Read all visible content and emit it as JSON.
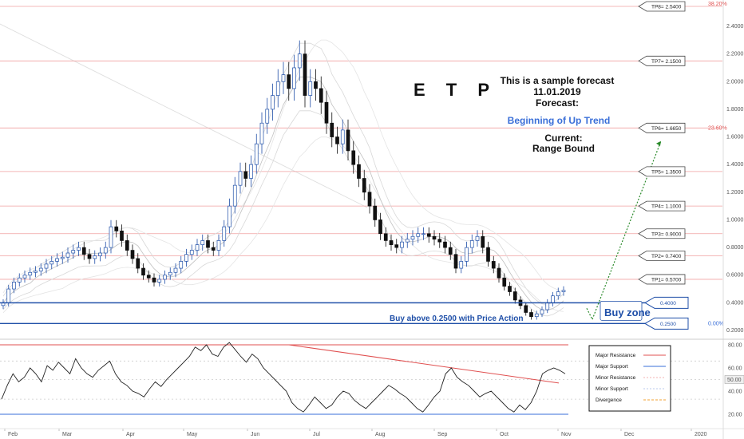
{
  "chart_data": {
    "type": "candlestick",
    "ticker": "E T P",
    "forecast": {
      "line1": "This is a sample forecast",
      "line2": "11.01.2019",
      "line3": "Forecast:",
      "trend": "Beginning of Up Trend",
      "current_label": "Current:",
      "current_value": "Range Bound"
    },
    "price_axis": {
      "ylim": [
        0.1,
        2.6
      ],
      "ticks": [
        "2.4000",
        "2.2000",
        "2.0000",
        "1.8000",
        "1.6000",
        "1.4000",
        "1.2000",
        "1.0000",
        "0.8000",
        "0.6000",
        "0.4000",
        "0.2000"
      ],
      "tick_values": [
        2.4,
        2.2,
        2.0,
        1.8,
        1.6,
        1.4,
        1.2,
        1.0,
        0.8,
        0.6,
        0.4,
        0.2
      ]
    },
    "targets": [
      {
        "label": "TP8= 2.5400",
        "value": 2.54
      },
      {
        "label": "TP7= 2.1500",
        "value": 2.15
      },
      {
        "label": "TP6= 1.6650",
        "value": 1.665
      },
      {
        "label": "TP5= 1.3500",
        "value": 1.35
      },
      {
        "label": "TP4= 1.1000",
        "value": 1.1
      },
      {
        "label": "TP3= 0.9000",
        "value": 0.9
      },
      {
        "label": "TP2= 0.7400",
        "value": 0.74
      },
      {
        "label": "TP1= 0.5700",
        "value": 0.57
      }
    ],
    "fib_levels": [
      {
        "label": "38.20%",
        "value": 2.58,
        "color": "#e05050"
      },
      {
        "label": "23.60%",
        "value": 1.665,
        "color": "#e05050"
      },
      {
        "label": "0.00%",
        "value": 0.25,
        "color": "#3a6fd8"
      }
    ],
    "buy_zone": {
      "label": "Buy zone",
      "upper": 0.4,
      "lower": 0.25,
      "upper_label": "0.4000",
      "lower_label": "0.2500",
      "note": "Buy above 0.2500 with Price Action"
    },
    "months": [
      "Feb",
      "Mar",
      "Apr",
      "May",
      "Jun",
      "Jul",
      "Aug",
      "Sep",
      "Oct",
      "Nov",
      "Dec",
      "2020"
    ],
    "price_path": [
      0.4,
      0.5,
      0.55,
      0.58,
      0.6,
      0.62,
      0.63,
      0.65,
      0.68,
      0.7,
      0.72,
      0.73,
      0.76,
      0.78,
      0.8,
      0.75,
      0.72,
      0.74,
      0.76,
      0.8,
      0.95,
      0.92,
      0.85,
      0.78,
      0.72,
      0.65,
      0.6,
      0.58,
      0.55,
      0.57,
      0.6,
      0.62,
      0.65,
      0.7,
      0.75,
      0.78,
      0.82,
      0.85,
      0.8,
      0.78,
      0.85,
      0.95,
      1.1,
      1.25,
      1.35,
      1.3,
      1.4,
      1.55,
      1.7,
      1.8,
      1.9,
      2.0,
      2.05,
      1.95,
      2.1,
      2.2,
      1.9,
      2.0,
      1.95,
      1.85,
      1.7,
      1.6,
      1.55,
      1.65,
      1.5,
      1.4,
      1.3,
      1.2,
      1.1,
      1.0,
      0.9,
      0.85,
      0.82,
      0.8,
      0.84,
      0.86,
      0.88,
      0.9,
      0.9,
      0.88,
      0.86,
      0.84,
      0.8,
      0.75,
      0.65,
      0.7,
      0.8,
      0.85,
      0.88,
      0.8,
      0.7,
      0.65,
      0.58,
      0.52,
      0.48,
      0.42,
      0.38,
      0.33,
      0.3,
      0.32,
      0.35,
      0.4,
      0.45,
      0.48,
      0.49
    ],
    "rsi_axis": {
      "ticks": [
        "80.00",
        "60.00",
        "40.00",
        "20.00"
      ],
      "tick_values": [
        80,
        60,
        40,
        20
      ],
      "current": "50.00",
      "current_value": 50,
      "ylim": [
        14,
        86
      ]
    },
    "rsi_path": [
      33,
      45,
      55,
      48,
      52,
      60,
      55,
      48,
      62,
      58,
      65,
      60,
      55,
      68,
      60,
      55,
      52,
      58,
      62,
      66,
      55,
      48,
      45,
      40,
      38,
      35,
      42,
      48,
      44,
      50,
      55,
      60,
      65,
      70,
      78,
      75,
      80,
      72,
      70,
      78,
      82,
      76,
      70,
      65,
      72,
      68,
      60,
      55,
      50,
      45,
      40,
      30,
      25,
      22,
      28,
      35,
      30,
      25,
      28,
      35,
      40,
      38,
      32,
      28,
      25,
      30,
      35,
      40,
      45,
      42,
      38,
      35,
      30,
      25,
      22,
      28,
      35,
      40,
      55,
      60,
      52,
      48,
      45,
      40,
      35,
      38,
      40,
      35,
      30,
      25,
      22,
      28,
      24,
      30,
      40,
      55,
      58,
      60,
      58,
      55
    ],
    "legend": [
      {
        "label": "Major Resistance",
        "color": "#e05050"
      },
      {
        "label": "Major Support",
        "color": "#3a6fd8"
      },
      {
        "label": "Minor Resistance",
        "color": "#f3b3b3"
      },
      {
        "label": "Minor Support",
        "color": "#b8c8ee"
      },
      {
        "label": "Divergence",
        "color": "#f0a030"
      }
    ],
    "colors": {
      "up": "#1f4fa8",
      "down": "#111111",
      "resistance": "#e05050",
      "support": "#1f4fa8",
      "projection": "#2a8a2a"
    }
  }
}
